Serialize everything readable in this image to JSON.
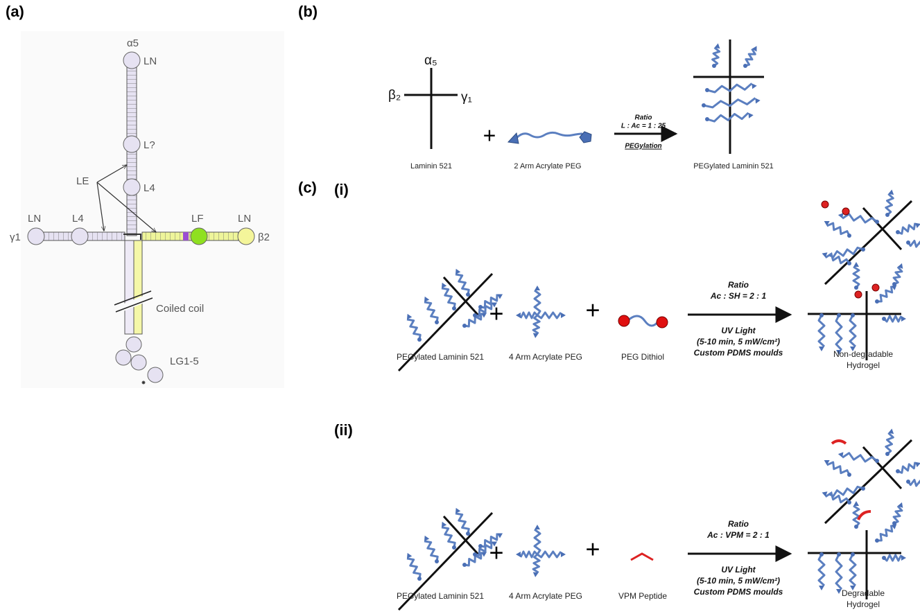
{
  "panel_a": {
    "label": "(a)",
    "alpha5": "α5",
    "ln_top": "LN",
    "l_unknown": "L?",
    "l4_vertical": "L4",
    "le": "LE",
    "ln_left": "LN",
    "l4_left": "L4",
    "lf": "LF",
    "ln_right": "LN",
    "gamma1": "γ1",
    "beta2": "β2",
    "coiled_coil": "Coiled coil",
    "lg": "LG1-5"
  },
  "panel_b": {
    "label": "(b)",
    "alpha": "α₅",
    "beta": "β₂",
    "gamma": "γ₁",
    "laminin": "Laminin 521",
    "peg": "2 Arm Acrylate PEG",
    "product": "PEGylated Laminin 521",
    "ratio": "Ratio",
    "ratio_value": "L : Ac = 1 : 25",
    "process": "PEGylation"
  },
  "panel_c": {
    "label": "(c)",
    "part_i": {
      "label": "(i)",
      "laminin": "PEGylated Laminin 521",
      "peg": "4 Arm Acrylate PEG",
      "crosslinker": "PEG Dithiol",
      "ratio": "Ratio",
      "ratio_value": "Ac : SH = 2 : 1",
      "uv": "UV Light",
      "uv_detail": "(5-10 min, 5 mW/cm²)",
      "moulds": "Custom PDMS moulds",
      "product_line1": "Non-degradable",
      "product_line2": "Hydrogel"
    },
    "part_ii": {
      "label": "(ii)",
      "laminin": "PEGylated Laminin 521",
      "peg": "4 Arm Acrylate PEG",
      "crosslinker": "VPM Peptide",
      "ratio": "Ratio",
      "ratio_value": "Ac : VPM = 2 : 1",
      "uv": "UV Light",
      "uv_detail": "(5-10 min, 5 mW/cm²)",
      "moulds": "Custom PDMS moulds",
      "product_line1": "Degradable",
      "product_line2": "Hydrogel"
    }
  }
}
